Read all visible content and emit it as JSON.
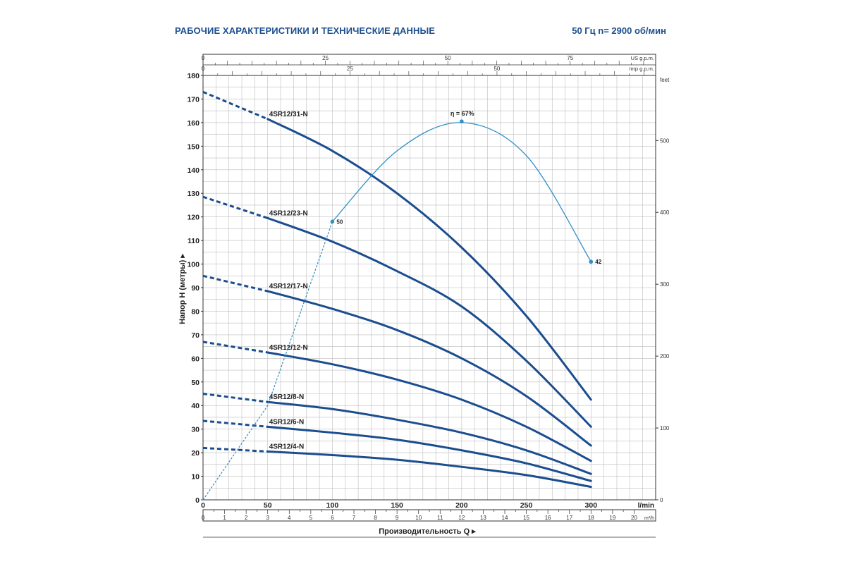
{
  "header": {
    "title": "РАБОЧИЕ ХАРАКТЕРИСТИКИ И ТЕХНИЧЕСКИЕ ДАННЫЕ",
    "subtitle": "50 Гц    n= 2900 об/мин"
  },
  "chart_data": {
    "type": "line",
    "title": "РАБОЧИЕ ХАРАКТЕРИСТИКИ И ТЕХНИЧЕСКИЕ ДАННЫЕ",
    "subtitle": "50 Гц    n= 2900 об/мин",
    "xlabel": "Производительность Q",
    "ylabel": "Напор H (метры)",
    "xlim": [
      0,
      350
    ],
    "ylim": [
      0,
      180
    ],
    "grid": true,
    "axes": {
      "x_lpm": {
        "unit": "l/min",
        "ticks": [
          0,
          50,
          100,
          150,
          200,
          250,
          300
        ]
      },
      "x_m3h": {
        "unit": "m³/h",
        "ticks": [
          0,
          1,
          2,
          3,
          4,
          5,
          6,
          7,
          8,
          9,
          10,
          11,
          12,
          13,
          14,
          15,
          16,
          17,
          18,
          19,
          20
        ]
      },
      "x_usgpm": {
        "unit": "US g.p.m.",
        "ticks": [
          0,
          25,
          50,
          75
        ]
      },
      "x_impgpm": {
        "unit": "Imp g.p.m.",
        "ticks": [
          0,
          25,
          50
        ]
      },
      "y_m": {
        "unit": "",
        "ticks": [
          0,
          10,
          20,
          30,
          40,
          50,
          60,
          70,
          80,
          90,
          100,
          110,
          120,
          130,
          140,
          150,
          160,
          170,
          180
        ]
      },
      "y_feet": {
        "unit": "feet",
        "ticks": [
          0,
          100,
          200,
          300,
          400,
          500
        ]
      }
    },
    "series": [
      {
        "name": "4SR12/31-N",
        "dashed": [
          [
            0,
            173
          ],
          [
            50,
            161.5
          ]
        ],
        "x": [
          50,
          100,
          150,
          200,
          250,
          300
        ],
        "y": [
          161.5,
          148,
          130,
          107,
          78,
          42.5
        ]
      },
      {
        "name": "4SR12/23-N",
        "dashed": [
          [
            0,
            128.5
          ],
          [
            50,
            119.5
          ]
        ],
        "x": [
          50,
          100,
          150,
          200,
          250,
          300
        ],
        "y": [
          119.5,
          109.5,
          97,
          82,
          59,
          31
        ]
      },
      {
        "name": "4SR12/17-N",
        "dashed": [
          [
            0,
            95
          ],
          [
            50,
            88.5
          ]
        ],
        "x": [
          50,
          100,
          150,
          200,
          250,
          300
        ],
        "y": [
          88.5,
          81,
          72,
          60,
          44,
          23
        ]
      },
      {
        "name": "4SR12/12-N",
        "dashed": [
          [
            0,
            67
          ],
          [
            50,
            62.5
          ]
        ],
        "x": [
          50,
          100,
          150,
          200,
          250,
          300
        ],
        "y": [
          62.5,
          57.5,
          51,
          42.5,
          31,
          16.5
        ]
      },
      {
        "name": "4SR12/8-N",
        "dashed": [
          [
            0,
            45
          ],
          [
            50,
            41.5
          ]
        ],
        "x": [
          50,
          100,
          150,
          200,
          250,
          300
        ],
        "y": [
          41.5,
          38.5,
          34,
          28.5,
          21,
          11
        ]
      },
      {
        "name": "4SR12/6-N",
        "dashed": [
          [
            0,
            33.5
          ],
          [
            50,
            31
          ]
        ],
        "x": [
          50,
          100,
          150,
          200,
          250,
          300
        ],
        "y": [
          31,
          28.5,
          25.5,
          21,
          15.5,
          8
        ]
      },
      {
        "name": "4SR12/4-N",
        "dashed": [
          [
            0,
            22
          ],
          [
            50,
            20.5
          ]
        ],
        "x": [
          50,
          100,
          150,
          200,
          250,
          300
        ],
        "y": [
          20.5,
          19,
          17,
          14,
          10.5,
          5.5
        ]
      }
    ],
    "efficiency": {
      "dashed": [
        [
          0,
          0
        ],
        [
          50,
          40
        ],
        [
          100,
          118
        ]
      ],
      "x": [
        100,
        150,
        200,
        250,
        300
      ],
      "y": [
        118,
        148,
        160,
        146,
        101
      ],
      "points": [
        {
          "x": 100,
          "y": 118,
          "label": "50"
        },
        {
          "x": 200,
          "y": 160.5,
          "label": "η = 67%"
        },
        {
          "x": 300,
          "y": 101,
          "label": "42"
        }
      ]
    }
  }
}
